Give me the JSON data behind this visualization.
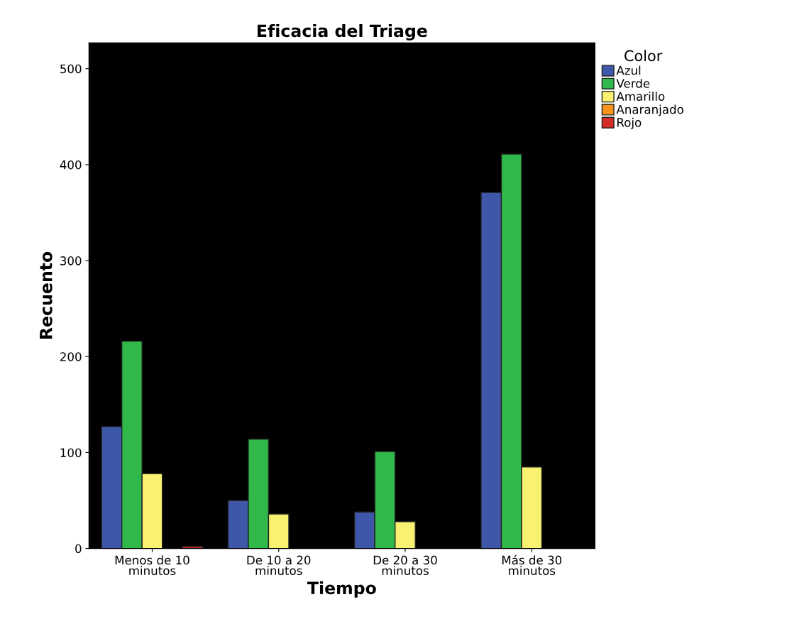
{
  "chart_data": {
    "type": "bar",
    "title": "Eficacia del Triage",
    "xlabel": "Tiempo",
    "ylabel": "Recuento",
    "legend_title": "Color",
    "legend": "top right",
    "categories": [
      "Menos de 10\nminutos",
      "De 10 a 20\nminutos",
      "De 20 a 30\nminutos",
      "Más de 30\nminutos"
    ],
    "series": [
      {
        "name": "Azul",
        "color": "#3f57a8",
        "values": [
          127,
          50,
          38,
          371
        ]
      },
      {
        "name": "Verde",
        "color": "#30b94a",
        "values": [
          216,
          114,
          101,
          411
        ]
      },
      {
        "name": "Amarillo",
        "color": "#f8f270",
        "values": [
          78,
          36,
          28,
          85
        ]
      },
      {
        "name": "Anaranjado",
        "color": "#f7941d",
        "values": [
          0,
          0,
          0,
          0
        ]
      },
      {
        "name": "Rojo",
        "color": "#d62b2b",
        "values": [
          2,
          0,
          0,
          0
        ]
      }
    ],
    "ylim": [
      0,
      527
    ],
    "yticks": [
      0,
      100,
      200,
      300,
      400,
      500
    ],
    "grid": false
  }
}
